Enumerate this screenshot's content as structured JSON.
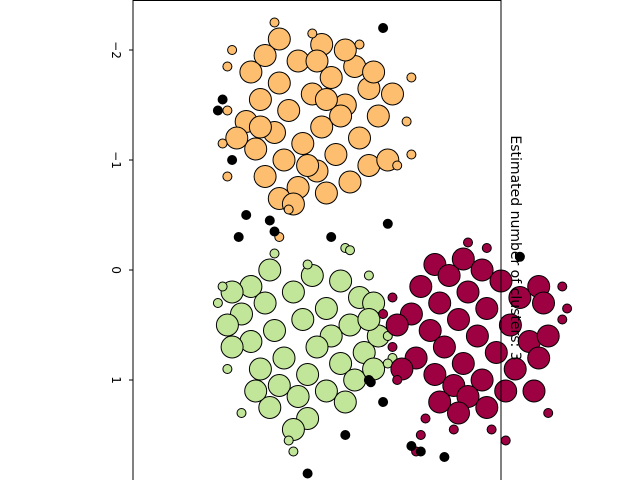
{
  "chart_data": {
    "type": "scatter",
    "title": "Estimated number of clusters: 3",
    "xlabel": "",
    "ylabel": "",
    "x_axis": {
      "range": [
        -2.45,
        1.9
      ],
      "ticks": [
        -2,
        -1,
        0,
        1
      ],
      "tick_labels": [
        "−2",
        "−1",
        "0",
        "1"
      ]
    },
    "y_axis": {
      "range": [
        -2.0,
        1.9
      ],
      "ticks": []
    },
    "orientation": "rotated 90 degrees clockwise",
    "grid": false,
    "legend": "none",
    "series": [
      {
        "color": "#fdbf6f",
        "core_points": [
          [
            -2.1,
            -0.45
          ],
          [
            -2.05,
            0.0
          ],
          [
            -1.95,
            -0.6
          ],
          [
            -1.9,
            -0.25
          ],
          [
            -1.85,
            0.35
          ],
          [
            -1.8,
            -0.75
          ],
          [
            -1.75,
            0.1
          ],
          [
            -1.7,
            -0.45
          ],
          [
            -1.65,
            0.5
          ],
          [
            -1.6,
            -0.1
          ],
          [
            -1.55,
            -0.65
          ],
          [
            -1.5,
            0.25
          ],
          [
            -1.45,
            -0.35
          ],
          [
            -1.4,
            0.6
          ],
          [
            -1.35,
            -0.8
          ],
          [
            -1.3,
            0.0
          ],
          [
            -1.25,
            -0.5
          ],
          [
            -1.2,
            0.4
          ],
          [
            -1.15,
            -0.2
          ],
          [
            -1.1,
            -0.7
          ],
          [
            -1.05,
            0.15
          ],
          [
            -1.0,
            -0.4
          ],
          [
            -0.95,
            0.5
          ],
          [
            -0.9,
            -0.05
          ],
          [
            -0.85,
            -0.6
          ],
          [
            -0.8,
            0.3
          ],
          [
            -0.75,
            -0.25
          ],
          [
            -0.7,
            0.05
          ],
          [
            -0.65,
            -0.45
          ],
          [
            -0.6,
            -0.3
          ],
          [
            -1.6,
            0.75
          ],
          [
            -1.2,
            -0.9
          ],
          [
            -1.8,
            0.55
          ],
          [
            -1.0,
            0.7
          ],
          [
            -1.4,
            0.2
          ],
          [
            -1.9,
            -0.05
          ],
          [
            -2.0,
            0.25
          ],
          [
            -1.3,
            -0.65
          ],
          [
            -1.55,
            0.05
          ],
          [
            -0.95,
            -0.15
          ]
        ],
        "border_points": [
          [
            -2.25,
            -0.5
          ],
          [
            -2.15,
            -0.1
          ],
          [
            -2.0,
            -0.95
          ],
          [
            -1.75,
            0.95
          ],
          [
            -1.35,
            0.9
          ],
          [
            -1.05,
            0.95
          ],
          [
            -1.15,
            -1.05
          ],
          [
            -0.85,
            -1.0
          ],
          [
            -0.55,
            -0.35
          ],
          [
            -0.3,
            -0.45
          ],
          [
            -0.95,
            0.8
          ],
          [
            -1.85,
            -1.0
          ],
          [
            -2.05,
            0.4
          ],
          [
            -1.45,
            -1.0
          ]
        ]
      },
      {
        "color": "#c2e699",
        "core_points": [
          [
            0.0,
            -0.55
          ],
          [
            0.05,
            -0.1
          ],
          [
            0.1,
            0.2
          ],
          [
            0.15,
            -0.75
          ],
          [
            0.2,
            -0.3
          ],
          [
            0.25,
            0.4
          ],
          [
            0.3,
            -0.6
          ],
          [
            0.35,
            0.05
          ],
          [
            0.4,
            -0.85
          ],
          [
            0.45,
            -0.2
          ],
          [
            0.5,
            0.3
          ],
          [
            0.55,
            -0.5
          ],
          [
            0.6,
            0.1
          ],
          [
            0.65,
            -0.75
          ],
          [
            0.7,
            -0.05
          ],
          [
            0.75,
            0.45
          ],
          [
            0.8,
            -0.4
          ],
          [
            0.85,
            0.2
          ],
          [
            0.9,
            -0.65
          ],
          [
            0.95,
            -0.15
          ],
          [
            1.0,
            0.35
          ],
          [
            1.05,
            -0.45
          ],
          [
            1.1,
            0.05
          ],
          [
            1.15,
            -0.25
          ],
          [
            1.2,
            0.25
          ],
          [
            1.25,
            -0.55
          ],
          [
            1.35,
            -0.15
          ],
          [
            1.45,
            -0.3
          ],
          [
            0.5,
            -1.0
          ],
          [
            0.7,
            -0.95
          ],
          [
            0.3,
            0.55
          ],
          [
            0.6,
            0.6
          ],
          [
            0.9,
            0.55
          ],
          [
            0.2,
            -0.95
          ],
          [
            1.1,
            -0.7
          ],
          [
            0.45,
            0.5
          ]
        ],
        "border_points": [
          [
            -0.15,
            -0.5
          ],
          [
            -0.05,
            -0.15
          ],
          [
            0.05,
            0.5
          ],
          [
            0.3,
            -1.1
          ],
          [
            0.6,
            0.7
          ],
          [
            0.8,
            0.75
          ],
          [
            0.85,
            0.7
          ],
          [
            0.9,
            -1.0
          ],
          [
            1.3,
            -0.85
          ],
          [
            1.55,
            -0.35
          ],
          [
            1.65,
            -0.3
          ],
          [
            -0.2,
            0.25
          ],
          [
            -0.18,
            0.3
          ],
          [
            0.15,
            -1.05
          ]
        ]
      },
      {
        "color": "#9e0142",
        "core_points": [
          [
            -0.1,
            1.5
          ],
          [
            -0.05,
            1.2
          ],
          [
            0.0,
            1.7
          ],
          [
            0.05,
            1.35
          ],
          [
            0.1,
            1.9
          ],
          [
            0.15,
            1.05
          ],
          [
            0.2,
            1.55
          ],
          [
            0.25,
            2.1
          ],
          [
            0.3,
            1.25
          ],
          [
            0.35,
            1.75
          ],
          [
            0.4,
            0.95
          ],
          [
            0.45,
            1.45
          ],
          [
            0.5,
            2.0
          ],
          [
            0.55,
            1.15
          ],
          [
            0.6,
            1.65
          ],
          [
            0.65,
            2.2
          ],
          [
            0.7,
            1.3
          ],
          [
            0.75,
            1.85
          ],
          [
            0.8,
            1.0
          ],
          [
            0.85,
            1.5
          ],
          [
            0.9,
            2.05
          ],
          [
            0.95,
            1.2
          ],
          [
            1.0,
            1.7
          ],
          [
            1.05,
            1.4
          ],
          [
            1.1,
            1.95
          ],
          [
            1.15,
            1.55
          ],
          [
            1.2,
            1.25
          ],
          [
            1.25,
            1.75
          ],
          [
            1.3,
            1.45
          ],
          [
            0.15,
            2.3
          ],
          [
            0.5,
            0.8
          ],
          [
            0.9,
            0.85
          ],
          [
            0.6,
            2.4
          ],
          [
            1.1,
            2.25
          ],
          [
            0.3,
            2.35
          ],
          [
            0.8,
            2.3
          ]
        ],
        "border_points": [
          [
            -0.25,
            1.55
          ],
          [
            -0.2,
            1.75
          ],
          [
            0.15,
            2.55
          ],
          [
            0.45,
            2.55
          ],
          [
            0.35,
            2.6
          ],
          [
            0.4,
            0.65
          ],
          [
            0.25,
            0.75
          ],
          [
            0.7,
            0.75
          ],
          [
            1.0,
            0.8
          ],
          [
            1.3,
            2.4
          ],
          [
            1.45,
            1.4
          ],
          [
            1.5,
            1.05
          ],
          [
            1.55,
            1.95
          ],
          [
            1.65,
            1.0
          ],
          [
            1.35,
            1.1
          ],
          [
            1.45,
            1.8
          ]
        ]
      },
      {
        "color": "#000000",
        "noise_points": [
          [
            -2.2,
            0.65
          ],
          [
            -1.55,
            -1.05
          ],
          [
            -1.45,
            -1.1
          ],
          [
            -1.0,
            -0.95
          ],
          [
            -0.5,
            -0.8
          ],
          [
            -0.45,
            -0.55
          ],
          [
            -0.35,
            -0.5
          ],
          [
            -0.3,
            0.1
          ],
          [
            -0.42,
            0.7
          ],
          [
            -0.3,
            -0.88
          ],
          [
            1.0,
            0.5
          ],
          [
            1.02,
            0.52
          ],
          [
            1.2,
            0.65
          ],
          [
            1.5,
            0.25
          ],
          [
            1.6,
            0.95
          ],
          [
            1.65,
            1.05
          ],
          [
            1.7,
            1.3
          ],
          [
            1.85,
            -0.15
          ],
          [
            -0.12,
            2.1
          ]
        ]
      }
    ]
  }
}
